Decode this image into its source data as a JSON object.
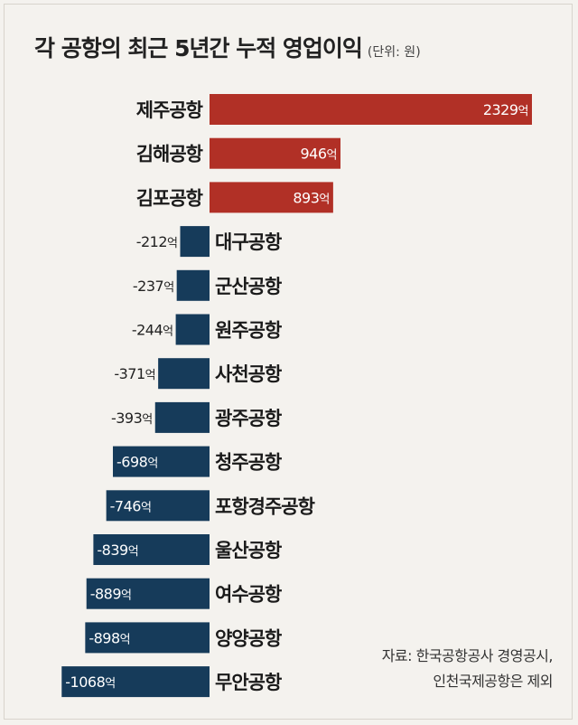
{
  "title": "각 공항의 최근 5년간 누적 영업이익",
  "unit_note": "(단위: 원)",
  "source_lines": [
    "자료: 한국공항공사 경영공시,",
    "인천국제공항은 제외"
  ],
  "colors": {
    "positive": "#b13026",
    "negative": "#163b5a"
  },
  "chart_data": {
    "type": "bar",
    "orientation": "horizontal",
    "value_suffix": "억",
    "categories": [
      "제주공항",
      "김해공항",
      "김포공항",
      "대구공항",
      "군산공항",
      "원주공항",
      "사천공항",
      "광주공항",
      "청주공항",
      "포항경주공항",
      "울산공항",
      "여수공항",
      "양양공항",
      "무안공항"
    ],
    "values": [
      2329,
      946,
      893,
      -212,
      -237,
      -244,
      -371,
      -393,
      -698,
      -746,
      -839,
      -889,
      -898,
      -1068
    ],
    "title": "각 공항의 최근 5년간 누적 영업이익",
    "xlabel": "",
    "ylabel": "",
    "grid": false
  }
}
